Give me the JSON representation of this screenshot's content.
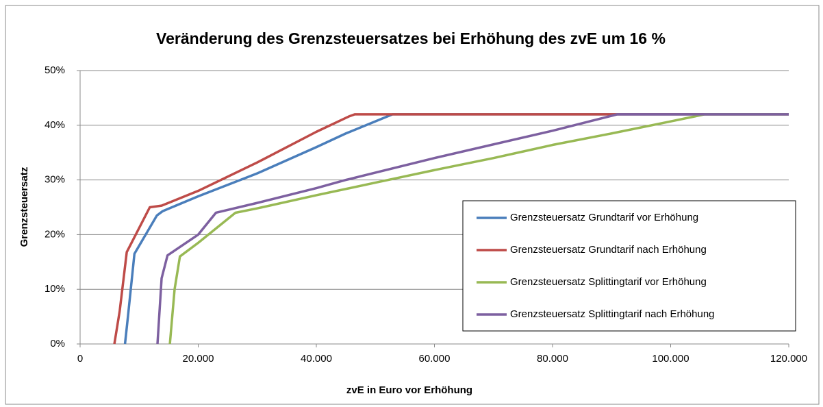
{
  "chart_data": {
    "type": "line",
    "title": "Veränderung des Grenzsteuersatzes bei Erhöhung des zvE um 16 %",
    "x_label": "zvE in Euro vor Erhöhung",
    "y_label": "Grenzsteuersatz",
    "xlim": [
      0,
      120000
    ],
    "xticks": [
      0,
      {
        "value": 20000,
        "label": "20.000"
      },
      {
        "value": 40000,
        "label": "40.000"
      },
      {
        "value": 60000,
        "label": "60.000"
      },
      {
        "value": 80000,
        "label": "80.000"
      },
      {
        "value": 100000,
        "label": "100.000"
      },
      {
        "value": 120000,
        "label": "120.000"
      }
    ],
    "ylim": [
      0,
      50
    ],
    "yticks": [
      {
        "value": 0,
        "label": "0%"
      },
      {
        "value": 10,
        "label": "10%"
      },
      {
        "value": 20,
        "label": "20%"
      },
      {
        "value": 30,
        "label": "30%"
      },
      {
        "value": 40,
        "label": "40%"
      },
      {
        "value": 50,
        "label": "50%"
      }
    ],
    "grid": true,
    "legend": "right",
    "series": [
      {
        "name": "Grenzsteuersatz Grundtarif vor Erhöhung",
        "color": "#4a7ebb",
        "x": [
          7600,
          8100,
          9200,
          13000,
          14000,
          20000,
          30000,
          40000,
          45000,
          52900,
          120000
        ],
        "values": [
          0,
          5,
          16.5,
          23.5,
          24.3,
          27,
          31.2,
          36,
          38.5,
          42,
          42
        ]
      },
      {
        "name": "Grenzsteuersatz Grundtarif nach Erhöhung",
        "color": "#be4b48",
        "x": [
          5800,
          6700,
          7900,
          11800,
          13800,
          20000,
          30000,
          40000,
          45500,
          46500,
          120000
        ],
        "values": [
          0,
          6,
          16.8,
          25,
          25.3,
          28,
          33.2,
          38.8,
          41.6,
          42,
          42
        ]
      },
      {
        "name": "Grenzsteuersatz Splittingtarif vor Erhöhung",
        "color": "#98b954",
        "x": [
          15200,
          16000,
          16900,
          20000,
          26300,
          30000,
          40000,
          50000,
          60000,
          70000,
          80000,
          90000,
          100000,
          105800,
          120000
        ],
        "values": [
          0,
          10,
          16,
          18.5,
          24,
          24.8,
          27.2,
          29.5,
          31.8,
          34,
          36.4,
          38.5,
          40.7,
          42,
          42
        ]
      },
      {
        "name": "Grenzsteuersatz Splittingtarif nach Erhöhung",
        "color": "#7d60a0",
        "x": [
          13100,
          13800,
          14800,
          20000,
          23000,
          30000,
          40000,
          45000,
          60000,
          80000,
          91000,
          120000
        ],
        "values": [
          0,
          12,
          16.2,
          20,
          24,
          25.8,
          28.5,
          30,
          34,
          39,
          42,
          42
        ]
      }
    ]
  }
}
